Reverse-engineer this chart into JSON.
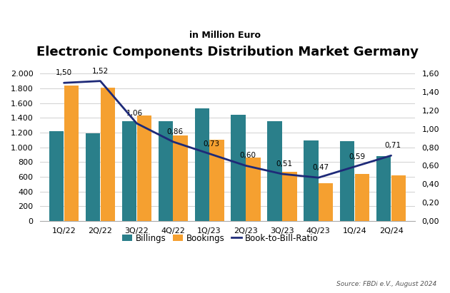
{
  "title": "Electronic Components Distribution Market Germany",
  "subtitle": "in Million Euro",
  "categories": [
    "1Q/22",
    "2Q/22",
    "3Q/22",
    "4Q/22",
    "1Q/23",
    "2Q/23",
    "3Q/23",
    "4Q/23",
    "1Q/24",
    "2Q/24"
  ],
  "billings": [
    1220,
    1190,
    1350,
    1350,
    1530,
    1440,
    1350,
    1090,
    1080,
    880
  ],
  "bookings": [
    1840,
    1810,
    1430,
    1160,
    1100,
    860,
    670,
    510,
    640,
    620
  ],
  "book_to_bill": [
    1.5,
    1.52,
    1.06,
    0.86,
    0.73,
    0.6,
    0.51,
    0.47,
    0.59,
    0.71
  ],
  "billings_color": "#2a7f8a",
  "bookings_color": "#f5a030",
  "line_color": "#1e2a78",
  "ylim_left": [
    0,
    2000
  ],
  "ylim_right": [
    0.0,
    1.6
  ],
  "yticks_left": [
    0,
    200,
    400,
    600,
    800,
    1000,
    1200,
    1400,
    1600,
    1800,
    2000
  ],
  "yticks_right": [
    0.0,
    0.2,
    0.4,
    0.6,
    0.8,
    1.0,
    1.2,
    1.4,
    1.6
  ],
  "source_text": "Source: FBDi e.V., August 2024",
  "background_color": "#ffffff",
  "plot_bg_color": "#ffffff",
  "grid_color": "#d0d0d0",
  "title_fontsize": 13,
  "subtitle_fontsize": 9,
  "tick_label_fontsize": 8,
  "legend_fontsize": 8.5,
  "annotation_fontsize": 7.5
}
